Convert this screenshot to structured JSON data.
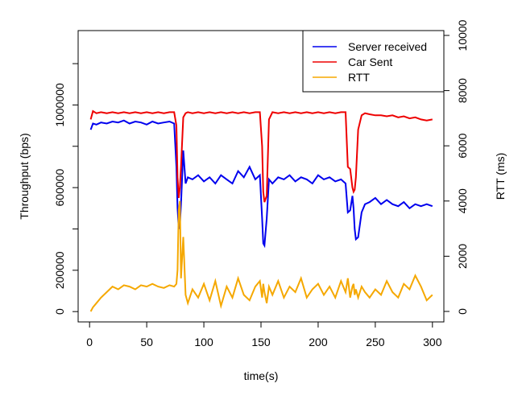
{
  "chart_data": {
    "type": "line",
    "xlabel": "time(s)",
    "ylabel": "Throughput (bps)",
    "y2label": "RTT (ms)",
    "xlim": [
      -10,
      310
    ],
    "xticks": [
      0,
      50,
      100,
      150,
      200,
      250,
      300
    ],
    "ylim": [
      -50000,
      1360000
    ],
    "yticks": [
      0,
      200000,
      600000,
      1000000
    ],
    "yticks_unlabeled": [
      400000,
      800000,
      1200000
    ],
    "y2lim": [
      -380,
      10175
    ],
    "y2ticks": [
      0,
      2000,
      4000,
      6000,
      8000,
      10000
    ],
    "legend": "top-right",
    "x": [
      1,
      3,
      6,
      10,
      15,
      20,
      25,
      30,
      35,
      40,
      45,
      50,
      55,
      60,
      65,
      70,
      74,
      76,
      77,
      78,
      79,
      80,
      82,
      84,
      86,
      90,
      95,
      100,
      105,
      110,
      115,
      120,
      125,
      130,
      135,
      140,
      145,
      149,
      151,
      152,
      153,
      155,
      157,
      160,
      165,
      170,
      175,
      180,
      185,
      190,
      195,
      200,
      205,
      210,
      215,
      220,
      224,
      226,
      228,
      230,
      231,
      232,
      233,
      235,
      238,
      241,
      245,
      250,
      255,
      260,
      265,
      270,
      275,
      280,
      285,
      290,
      295,
      300
    ],
    "series": [
      {
        "name": "Server received",
        "color": "#0000ee",
        "values": [
          880000,
          910000,
          905000,
          915000,
          910000,
          920000,
          915000,
          925000,
          910000,
          920000,
          915000,
          905000,
          920000,
          910000,
          915000,
          920000,
          910000,
          700000,
          500000,
          400000,
          420000,
          520000,
          780000,
          620000,
          650000,
          640000,
          660000,
          630000,
          650000,
          620000,
          660000,
          640000,
          620000,
          680000,
          650000,
          700000,
          640000,
          660000,
          450000,
          330000,
          320000,
          450000,
          640000,
          620000,
          650000,
          640000,
          660000,
          630000,
          650000,
          640000,
          620000,
          660000,
          640000,
          650000,
          630000,
          640000,
          620000,
          480000,
          490000,
          560000,
          500000,
          400000,
          350000,
          360000,
          480000,
          520000,
          530000,
          550000,
          520000,
          540000,
          520000,
          510000,
          530000,
          500000,
          520000,
          510000,
          520000,
          510000
        ]
      },
      {
        "name": "Car Sent",
        "color": "#ee0000",
        "values": [
          930000,
          970000,
          960000,
          965000,
          960000,
          965000,
          960000,
          965000,
          960000,
          965000,
          960000,
          965000,
          960000,
          965000,
          960000,
          965000,
          965000,
          900000,
          650000,
          550000,
          600000,
          700000,
          940000,
          960000,
          965000,
          960000,
          965000,
          960000,
          965000,
          960000,
          965000,
          960000,
          965000,
          960000,
          965000,
          960000,
          965000,
          965000,
          800000,
          580000,
          530000,
          560000,
          930000,
          965000,
          960000,
          965000,
          960000,
          965000,
          960000,
          965000,
          960000,
          965000,
          960000,
          965000,
          960000,
          965000,
          965000,
          700000,
          690000,
          600000,
          580000,
          590000,
          650000,
          880000,
          950000,
          960000,
          955000,
          950000,
          950000,
          945000,
          950000,
          940000,
          945000,
          935000,
          940000,
          930000,
          925000,
          930000
        ]
      },
      {
        "name": "RTT",
        "color": "#f5a800",
        "axis": "y2",
        "values": [
          0,
          150,
          300,
          500,
          700,
          900,
          800,
          950,
          900,
          800,
          950,
          900,
          1000,
          900,
          850,
          950,
          900,
          1000,
          1500,
          3700,
          4000,
          1200,
          2700,
          600,
          300,
          800,
          500,
          1000,
          400,
          1100,
          200,
          900,
          500,
          1200,
          600,
          400,
          900,
          1100,
          500,
          1000,
          700,
          300,
          900,
          600,
          1100,
          500,
          900,
          700,
          1200,
          500,
          800,
          1000,
          600,
          900,
          500,
          1100,
          700,
          1200,
          500,
          900,
          1000,
          600,
          800,
          500,
          900,
          700,
          500,
          800,
          600,
          1100,
          700,
          500,
          1000,
          800,
          1300,
          900,
          400,
          600
        ]
      }
    ]
  }
}
